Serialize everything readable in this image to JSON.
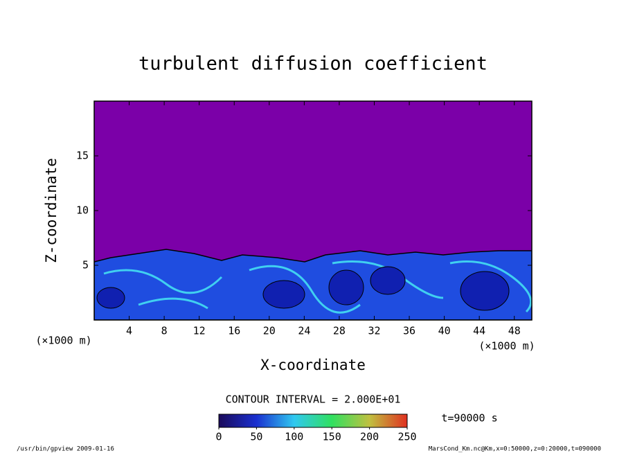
{
  "chart_data": {
    "type": "contour",
    "title": "turbulent diffusion coefficient",
    "x_label": "X-coordinate",
    "y_label": "Z-coordinate",
    "x_unit": "(×1000 m)",
    "xlim": [
      0,
      50
    ],
    "xticks": [
      4,
      8,
      12,
      16,
      20,
      24,
      28,
      32,
      36,
      40,
      44,
      48
    ],
    "ylim": [
      0,
      20
    ],
    "yticks": [
      5,
      10,
      15
    ],
    "contour_interval": "CONTOUR INTERVAL = 2.000E+01",
    "colorbar": {
      "lim": [
        0,
        250
      ],
      "ticks": [
        0,
        50,
        100,
        150,
        200,
        250
      ]
    },
    "time_label": "t=90000 s",
    "footer_left": "/usr/bin/gpview  2009-01-16",
    "footer_right": "MarsCond_Km.nc@Km,x=0:50000,z=0:20000,t=090000"
  }
}
